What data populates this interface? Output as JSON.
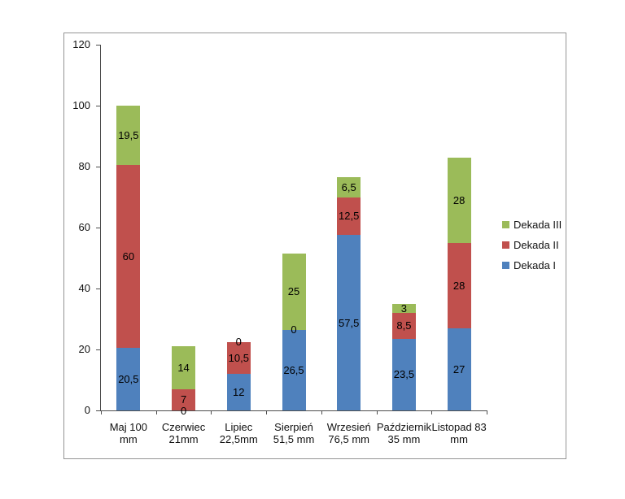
{
  "chart_data": {
    "type": "bar",
    "stacked": true,
    "orientation": "vertical",
    "title": "",
    "xlabel": "",
    "ylabel": "",
    "ylim": [
      0,
      120
    ],
    "y_tick_step": 20,
    "y_tick_labels": [
      "0",
      "20",
      "40",
      "60",
      "80",
      "100",
      "120"
    ],
    "grid": false,
    "categories": [
      [
        "Maj 100",
        "mm"
      ],
      [
        "Czerwiec",
        "21mm"
      ],
      [
        "Lipiec",
        "22,5mm"
      ],
      [
        "Sierpień",
        "51,5 mm"
      ],
      [
        "Wrzesień",
        "76,5 mm"
      ],
      [
        "Październik",
        "35 mm"
      ],
      [
        "Listopad 83",
        "mm"
      ]
    ],
    "series": [
      {
        "name": "Dekada I",
        "color": "#4F81BD",
        "values": [
          20.5,
          0,
          12,
          26.5,
          57.5,
          23.5,
          27
        ],
        "labels": [
          "20,5",
          "0",
          "12",
          "26,5",
          "57,5",
          "23,5",
          "27"
        ]
      },
      {
        "name": "Dekada II",
        "color": "#C0504D",
        "values": [
          60,
          7,
          10.5,
          0,
          12.5,
          8.5,
          28
        ],
        "labels": [
          "60",
          "7",
          "10,5",
          "0",
          "12,5",
          "8,5",
          "28"
        ]
      },
      {
        "name": "Dekada III",
        "color": "#9BBB59",
        "values": [
          19.5,
          14,
          0,
          25,
          6.5,
          3,
          28
        ],
        "labels": [
          "19,5",
          "14",
          "0",
          "25",
          "6,5",
          "3",
          "28"
        ]
      }
    ],
    "legend": {
      "position": "right",
      "items": [
        {
          "label": "Dekada III",
          "color": "#9BBB59"
        },
        {
          "label": "Dekada II",
          "color": "#C0504D"
        },
        {
          "label": "Dekada I",
          "color": "#4F81BD"
        }
      ]
    },
    "colors": {
      "axis": "#4d4d4d",
      "frame_border": "#949494",
      "text": "#111111",
      "background": "#ffffff"
    }
  }
}
